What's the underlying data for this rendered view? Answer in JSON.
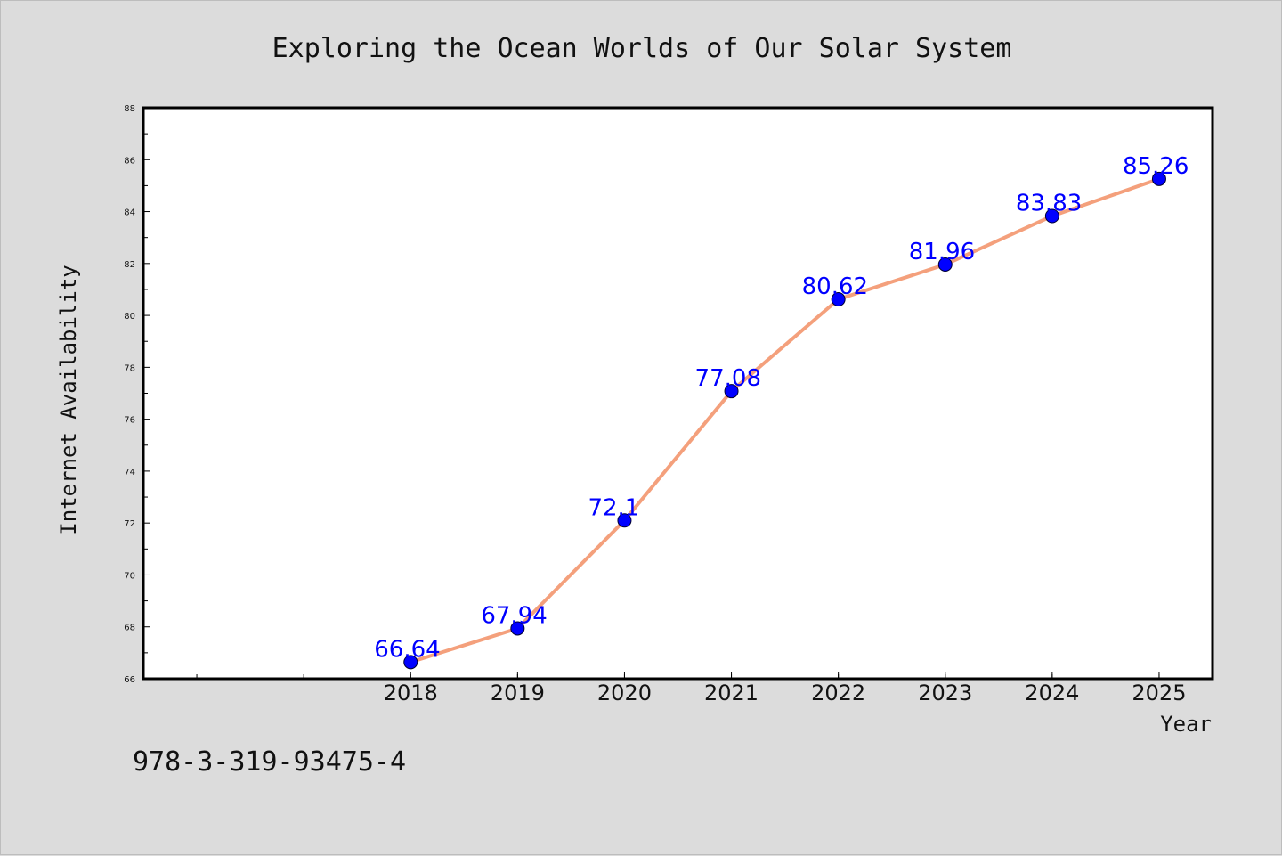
{
  "chart_data": {
    "type": "line",
    "title": "Exploring the Ocean Worlds of Our Solar System",
    "xlabel": "Year",
    "ylabel": "Internet Availability",
    "categories": [
      "2018",
      "2019",
      "2020",
      "2021",
      "2022",
      "2023",
      "2024",
      "2025"
    ],
    "series": [
      {
        "values": [
          66.64,
          67.94,
          72.1,
          77.08,
          80.62,
          81.96,
          83.83,
          85.26
        ],
        "data_labels": [
          "66.64",
          "67.94",
          "72.1",
          "77.08",
          "80.62",
          "81.96",
          "83.83",
          "85.26"
        ]
      }
    ],
    "x_range": [
      2015.5,
      2025.5
    ],
    "ylim": [
      66,
      88
    ],
    "y_ticks": [
      "66",
      "68",
      "70",
      "72",
      "74",
      "76",
      "78",
      "80",
      "82",
      "84",
      "86",
      "88"
    ],
    "grid": false,
    "legend": "none",
    "colors": {
      "line": "#f4a07c",
      "marker": "#0000ff",
      "data_label": "#0000ff",
      "background": "#dcdcdc",
      "plot_background": "#ffffff"
    }
  },
  "footer": {
    "isbn": "978-3-319-93475-4"
  }
}
